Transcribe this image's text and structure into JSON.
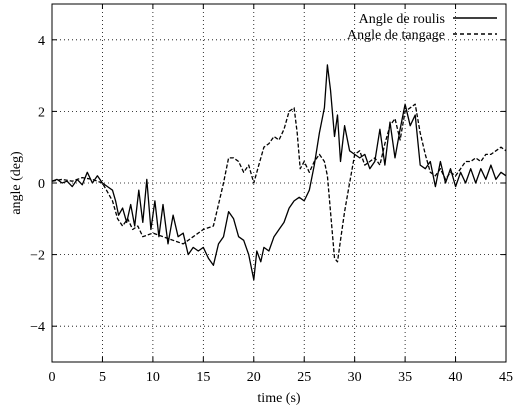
{
  "chart_data": {
    "type": "line",
    "title": "",
    "xlabel": "time (s)",
    "ylabel": "angle (deg)",
    "xlim": [
      0,
      45
    ],
    "ylim": [
      -5,
      5
    ],
    "xticks": [
      0,
      5,
      10,
      15,
      20,
      25,
      30,
      35,
      40,
      45
    ],
    "yticks": [
      -4,
      -2,
      0,
      2,
      4
    ],
    "ytick_labels": [
      "−4",
      "−2",
      "0",
      "2",
      "4"
    ],
    "grid": true,
    "grid_style": "dotted",
    "legend_position": "top-right",
    "series": [
      {
        "name": "Angle de roulis",
        "style": "solid",
        "color": "#000000",
        "points": [
          [
            0.0,
            0.05
          ],
          [
            0.5,
            0.1
          ],
          [
            1.0,
            0.0
          ],
          [
            1.5,
            0.05
          ],
          [
            2.0,
            -0.1
          ],
          [
            2.5,
            0.1
          ],
          [
            3.0,
            -0.05
          ],
          [
            3.5,
            0.3
          ],
          [
            4.0,
            0.0
          ],
          [
            4.5,
            0.2
          ],
          [
            5.0,
            0.0
          ],
          [
            5.5,
            -0.1
          ],
          [
            6.0,
            -0.2
          ],
          [
            6.3,
            -0.5
          ],
          [
            6.6,
            -0.9
          ],
          [
            7.0,
            -0.7
          ],
          [
            7.4,
            -1.1
          ],
          [
            7.8,
            -0.6
          ],
          [
            8.2,
            -1.2
          ],
          [
            8.6,
            -0.2
          ],
          [
            9.0,
            -1.1
          ],
          [
            9.4,
            0.1
          ],
          [
            9.8,
            -1.3
          ],
          [
            10.2,
            -0.5
          ],
          [
            10.6,
            -1.5
          ],
          [
            11.0,
            -0.6
          ],
          [
            11.5,
            -1.7
          ],
          [
            12.0,
            -0.9
          ],
          [
            12.5,
            -1.5
          ],
          [
            13.0,
            -1.4
          ],
          [
            13.5,
            -2.0
          ],
          [
            14.0,
            -1.8
          ],
          [
            14.5,
            -1.9
          ],
          [
            15.0,
            -1.8
          ],
          [
            15.5,
            -2.1
          ],
          [
            16.0,
            -2.3
          ],
          [
            16.5,
            -1.7
          ],
          [
            17.0,
            -1.5
          ],
          [
            17.5,
            -0.8
          ],
          [
            18.0,
            -1.0
          ],
          [
            18.5,
            -1.5
          ],
          [
            19.0,
            -1.6
          ],
          [
            19.5,
            -2.0
          ],
          [
            20.0,
            -2.7
          ],
          [
            20.3,
            -1.9
          ],
          [
            20.7,
            -2.2
          ],
          [
            21.0,
            -1.8
          ],
          [
            21.5,
            -1.9
          ],
          [
            22.0,
            -1.5
          ],
          [
            22.5,
            -1.3
          ],
          [
            23.0,
            -1.1
          ],
          [
            23.5,
            -0.7
          ],
          [
            24.0,
            -0.5
          ],
          [
            24.5,
            -0.4
          ],
          [
            25.0,
            -0.5
          ],
          [
            25.5,
            -0.2
          ],
          [
            26.0,
            0.5
          ],
          [
            26.5,
            1.4
          ],
          [
            27.0,
            2.1
          ],
          [
            27.3,
            3.3
          ],
          [
            27.6,
            2.6
          ],
          [
            28.0,
            1.3
          ],
          [
            28.3,
            1.9
          ],
          [
            28.6,
            0.6
          ],
          [
            29.0,
            1.6
          ],
          [
            29.5,
            0.9
          ],
          [
            30.0,
            0.8
          ],
          [
            30.5,
            0.7
          ],
          [
            31.0,
            0.8
          ],
          [
            31.5,
            0.4
          ],
          [
            32.0,
            0.6
          ],
          [
            32.5,
            1.5
          ],
          [
            33.0,
            0.5
          ],
          [
            33.5,
            1.7
          ],
          [
            34.0,
            0.7
          ],
          [
            34.5,
            1.5
          ],
          [
            35.0,
            2.2
          ],
          [
            35.5,
            1.6
          ],
          [
            36.0,
            1.9
          ],
          [
            36.5,
            0.5
          ],
          [
            37.0,
            0.4
          ],
          [
            37.5,
            0.6
          ],
          [
            38.0,
            -0.1
          ],
          [
            38.5,
            0.6
          ],
          [
            39.0,
            0.0
          ],
          [
            39.5,
            0.4
          ],
          [
            40.0,
            -0.1
          ],
          [
            40.5,
            0.3
          ],
          [
            41.0,
            0.0
          ],
          [
            41.5,
            0.4
          ],
          [
            42.0,
            0.0
          ],
          [
            42.5,
            0.4
          ],
          [
            43.0,
            0.1
          ],
          [
            43.5,
            0.5
          ],
          [
            44.0,
            0.1
          ],
          [
            44.5,
            0.3
          ],
          [
            45.0,
            0.2
          ]
        ]
      },
      {
        "name": "Angle de tangage",
        "style": "dashed",
        "color": "#000000",
        "points": [
          [
            0.0,
            0.05
          ],
          [
            1.0,
            0.1
          ],
          [
            2.0,
            0.05
          ],
          [
            3.0,
            0.15
          ],
          [
            4.0,
            0.1
          ],
          [
            5.0,
            0.0
          ],
          [
            6.0,
            -0.5
          ],
          [
            6.5,
            -1.0
          ],
          [
            7.0,
            -1.2
          ],
          [
            7.5,
            -1.0
          ],
          [
            8.0,
            -1.3
          ],
          [
            8.5,
            -1.2
          ],
          [
            9.0,
            -1.5
          ],
          [
            10.0,
            -1.4
          ],
          [
            11.0,
            -1.5
          ],
          [
            12.0,
            -1.6
          ],
          [
            13.0,
            -1.7
          ],
          [
            14.0,
            -1.5
          ],
          [
            15.0,
            -1.3
          ],
          [
            16.0,
            -1.2
          ],
          [
            16.5,
            -0.6
          ],
          [
            17.0,
            0.0
          ],
          [
            17.5,
            0.7
          ],
          [
            18.0,
            0.7
          ],
          [
            18.5,
            0.6
          ],
          [
            19.0,
            0.3
          ],
          [
            19.5,
            0.5
          ],
          [
            20.0,
            0.0
          ],
          [
            20.5,
            0.5
          ],
          [
            21.0,
            1.0
          ],
          [
            21.5,
            1.1
          ],
          [
            22.0,
            1.3
          ],
          [
            22.5,
            1.2
          ],
          [
            23.0,
            1.5
          ],
          [
            23.5,
            2.0
          ],
          [
            24.0,
            2.1
          ],
          [
            24.3,
            1.4
          ],
          [
            24.6,
            0.4
          ],
          [
            25.0,
            0.6
          ],
          [
            25.5,
            0.3
          ],
          [
            26.0,
            0.6
          ],
          [
            26.5,
            0.8
          ],
          [
            27.0,
            0.6
          ],
          [
            27.3,
            0.2
          ],
          [
            27.6,
            -0.8
          ],
          [
            28.0,
            -2.1
          ],
          [
            28.3,
            -2.2
          ],
          [
            28.6,
            -1.6
          ],
          [
            29.0,
            -0.8
          ],
          [
            29.5,
            0.0
          ],
          [
            30.0,
            0.8
          ],
          [
            30.5,
            0.9
          ],
          [
            31.0,
            0.5
          ],
          [
            31.5,
            0.6
          ],
          [
            32.0,
            0.7
          ],
          [
            32.5,
            0.5
          ],
          [
            33.0,
            1.1
          ],
          [
            33.5,
            1.6
          ],
          [
            34.0,
            1.8
          ],
          [
            34.5,
            1.2
          ],
          [
            35.0,
            2.0
          ],
          [
            35.5,
            2.1
          ],
          [
            36.0,
            2.2
          ],
          [
            36.5,
            1.4
          ],
          [
            37.0,
            0.8
          ],
          [
            37.5,
            0.3
          ],
          [
            38.0,
            0.2
          ],
          [
            38.5,
            0.4
          ],
          [
            39.0,
            0.1
          ],
          [
            39.5,
            0.3
          ],
          [
            40.0,
            0.2
          ],
          [
            40.5,
            0.4
          ],
          [
            41.0,
            0.6
          ],
          [
            41.5,
            0.6
          ],
          [
            42.0,
            0.7
          ],
          [
            42.5,
            0.6
          ],
          [
            43.0,
            0.8
          ],
          [
            43.5,
            0.8
          ],
          [
            44.0,
            0.9
          ],
          [
            44.5,
            1.0
          ],
          [
            45.0,
            0.9
          ]
        ]
      }
    ]
  }
}
